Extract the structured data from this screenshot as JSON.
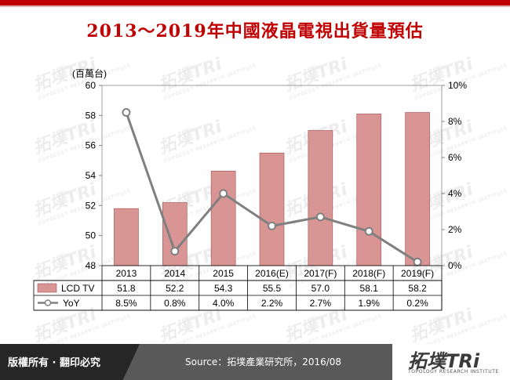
{
  "title": "2013～2019年中國液晶電視出貨量預估",
  "footer": {
    "copyright": "版權所有 · 翻印必究",
    "source": "Source：拓墣產業研究所，2016/08",
    "logo_text": "拓墣TRi",
    "logo_subtitle": "TOPOLOGY RESEARCH INSTITUTE"
  },
  "watermark": {
    "text": "拓墣TRi",
    "subtitle": "TOPOLOGY RESEARCH INSTITUTE"
  },
  "colors": {
    "bar": "#d99594",
    "bar_stroke": "#a05050",
    "line": "#808080",
    "title": "#c00000"
  },
  "chart_data": {
    "type": "bar",
    "categories": [
      "2013",
      "2014",
      "2015",
      "2016(E)",
      "2017(F)",
      "2018(F)",
      "2019(F)"
    ],
    "ylabel": "(百萬台)",
    "ylim": [
      48,
      60
    ],
    "yticks": [
      "48",
      "50",
      "52",
      "54",
      "56",
      "58",
      "60"
    ],
    "y2lim": [
      0,
      10
    ],
    "y2ticks": [
      "0%",
      "2%",
      "4%",
      "6%",
      "8%",
      "10%"
    ],
    "grid": false,
    "series": [
      {
        "name": "LCD TV",
        "type": "bar",
        "axis": "left",
        "values": [
          51.8,
          52.2,
          54.3,
          55.5,
          57.0,
          58.1,
          58.2
        ],
        "labels": [
          "51.8",
          "52.2",
          "54.3",
          "55.5",
          "57.0",
          "58.1",
          "58.2"
        ]
      },
      {
        "name": "YoY",
        "type": "line",
        "axis": "right",
        "values": [
          8.5,
          0.8,
          4.0,
          2.2,
          2.7,
          1.9,
          0.2
        ],
        "labels": [
          "8.5%",
          "0.8%",
          "4.0%",
          "2.2%",
          "2.7%",
          "1.9%",
          "0.2%"
        ]
      }
    ]
  }
}
